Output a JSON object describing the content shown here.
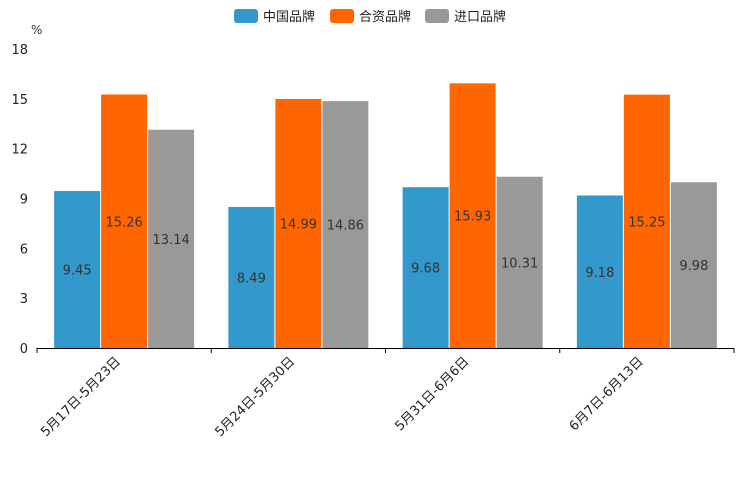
{
  "chart_data": {
    "type": "bar",
    "unit_label": "%",
    "categories": [
      "5月17日-5月23日",
      "5月24日-5月30日",
      "5月31日-6月6日",
      "6月7日-6月13日"
    ],
    "series": [
      {
        "name": "中国品牌",
        "color": "#3399cc",
        "values": [
          9.45,
          8.49,
          9.68,
          9.18
        ]
      },
      {
        "name": "合资品牌",
        "color": "#ff6600",
        "values": [
          15.26,
          14.99,
          15.93,
          15.25
        ]
      },
      {
        "name": "进口品牌",
        "color": "#999999",
        "values": [
          13.14,
          14.86,
          10.31,
          9.98
        ]
      }
    ],
    "value_labels": [
      [
        "9.45",
        "8.49",
        "9.68",
        "9.18"
      ],
      [
        "15.26",
        "14.99",
        "15.93",
        "15.25"
      ],
      [
        "13.14",
        "14.86",
        "10.31",
        "9.98"
      ]
    ],
    "ylim": [
      0,
      18
    ],
    "yticks": [
      0,
      3,
      6,
      9,
      12,
      15,
      18
    ],
    "legend_position": "top-center"
  }
}
